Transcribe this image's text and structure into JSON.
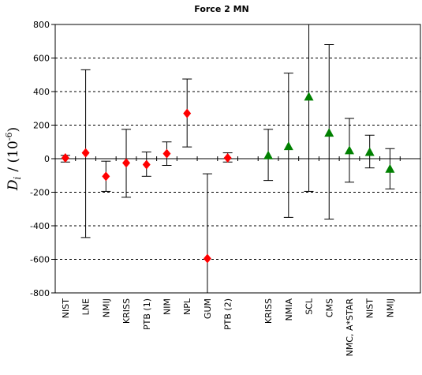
{
  "chart_data": {
    "type": "scatter",
    "title": "Force 2 MN",
    "ylabel": "D",
    "ylabel_sub": "i",
    "ylabel_unit_prefix": "/ (10",
    "ylabel_unit_exp": "-6",
    "ylabel_unit_suffix": ")",
    "ylim": [
      -800,
      800
    ],
    "yticks": [
      -800,
      -600,
      -400,
      -200,
      0,
      200,
      400,
      600,
      800
    ],
    "grid": "horizontal dashed",
    "error_bars": true,
    "colors": {
      "series1": "#ff0000",
      "series2": "#008000"
    },
    "series": [
      {
        "marker": "diamond",
        "color": "#ff0000",
        "points": [
          {
            "label": "NIST",
            "slot": 0,
            "y": 5,
            "err_low": -20,
            "err_high": 20
          },
          {
            "label": "LNE",
            "slot": 1,
            "y": 35,
            "err_low": -470,
            "err_high": 530
          },
          {
            "label": "NMIJ",
            "slot": 2,
            "y": -105,
            "err_low": -195,
            "err_high": -15
          },
          {
            "label": "KRISS",
            "slot": 3,
            "y": -25,
            "err_low": -230,
            "err_high": 175
          },
          {
            "label": "PTB (1)",
            "slot": 4,
            "y": -35,
            "err_low": -105,
            "err_high": 40
          },
          {
            "label": "NIM",
            "slot": 5,
            "y": 30,
            "err_low": -40,
            "err_high": 100
          },
          {
            "label": "NPL",
            "slot": 6,
            "y": 270,
            "err_low": 70,
            "err_high": 475
          },
          {
            "label": "GUM",
            "slot": 7,
            "y": -595,
            "err_low": -800,
            "err_high": -90
          },
          {
            "label": "PTB (2)",
            "slot": 8,
            "y": 5,
            "err_low": -20,
            "err_high": 35
          }
        ]
      },
      {
        "marker": "triangle",
        "color": "#008000",
        "points": [
          {
            "label": "KRISS",
            "slot": 10,
            "y": 20,
            "err_low": -130,
            "err_high": 175
          },
          {
            "label": "NMIA",
            "slot": 11,
            "y": 75,
            "err_low": -350,
            "err_high": 510
          },
          {
            "label": "SCL",
            "slot": 12,
            "y": 370,
            "err_low": -195,
            "err_high": 830
          },
          {
            "label": "CMS",
            "slot": 13,
            "y": 155,
            "err_low": -360,
            "err_high": 680
          },
          {
            "label": "NMC, A*STAR",
            "slot": 14,
            "y": 50,
            "err_low": -140,
            "err_high": 240
          },
          {
            "label": "NIST",
            "slot": 15,
            "y": 40,
            "err_low": -55,
            "err_high": 140
          },
          {
            "label": "NMIJ",
            "slot": 16,
            "y": -60,
            "err_low": -180,
            "err_high": 60
          }
        ]
      }
    ]
  }
}
